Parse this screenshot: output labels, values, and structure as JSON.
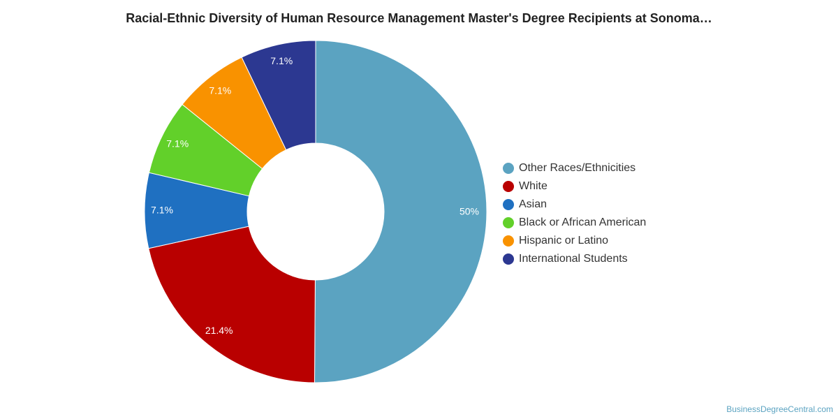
{
  "chart_data": {
    "type": "pie",
    "title": "Racial-Ethnic Diversity of Human Resource Management Master's Degree Recipients at Sonoma…",
    "categories": [
      "Other Races/Ethnicities",
      "White",
      "Asian",
      "Black or African American",
      "Hispanic or Latino",
      "International Students"
    ],
    "values": [
      50,
      21.4,
      7.1,
      7.1,
      7.1,
      7.1
    ],
    "data_labels": [
      "50%",
      "21.4%",
      "7.1%",
      "7.1%",
      "7.1%",
      "7.1%"
    ],
    "colors": [
      "#5ba3c1",
      "#b90000",
      "#1f70c1",
      "#62d02a",
      "#f99200",
      "#2c3891"
    ],
    "legend_position": "right",
    "donut": true
  },
  "watermark": "BusinessDegreeCentral.com"
}
